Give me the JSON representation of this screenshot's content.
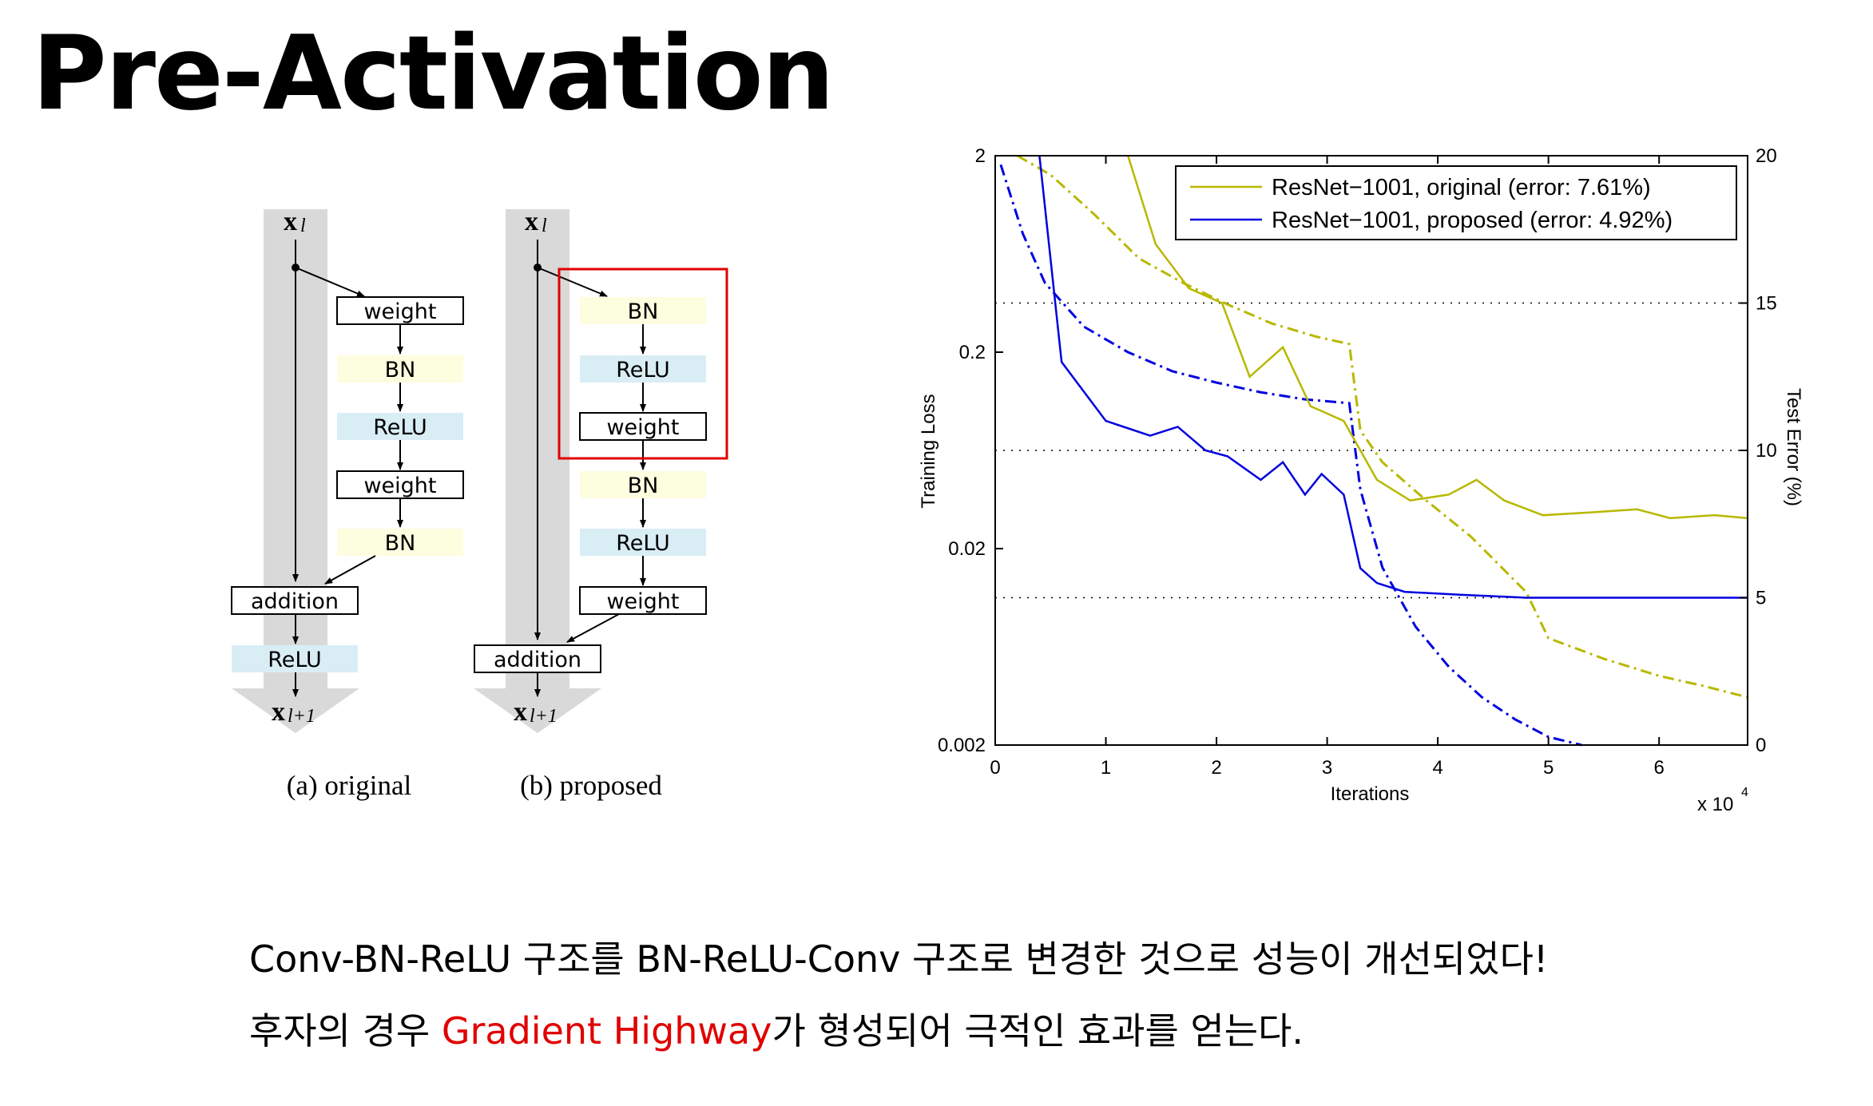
{
  "title": "Pre-Activation",
  "diagram": {
    "input_label": "x",
    "input_sub": "l",
    "output_label": "x",
    "output_sub": "l+1",
    "original": {
      "caption": "(a) original",
      "blocks": [
        "weight",
        "BN",
        "ReLU",
        "weight",
        "BN"
      ],
      "addition": "addition",
      "after": "ReLU"
    },
    "proposed": {
      "caption": "(b) proposed",
      "blocks": [
        "BN",
        "ReLU",
        "weight",
        "BN",
        "ReLU",
        "weight"
      ],
      "addition": "addition"
    },
    "colors": {
      "bn": "#fdfde0",
      "relu": "#d9edf5",
      "weight": "#ffffff",
      "highway": "#d9d9d9",
      "highlight": "#e00000"
    }
  },
  "chart_data": {
    "type": "line",
    "legend": [
      {
        "name": "ResNet−1001, original (error: 7.61%)",
        "color": "#b8b800"
      },
      {
        "name": "ResNet−1001, proposed (error: 4.92%)",
        "color": "#0000e0"
      }
    ],
    "legend_position": "top-right",
    "xlabel": "Iterations",
    "x_multiplier": "x 10",
    "x_multiplier_exp": "4",
    "ylabel_left": "Training Loss",
    "ylabel_right": "Test Error (%)",
    "x_ticks": [
      "0",
      "1",
      "2",
      "3",
      "4",
      "5",
      "6"
    ],
    "y_left_ticks": [
      "2",
      "0.2",
      "0.02",
      "0.002"
    ],
    "y_right_ticks": [
      "20",
      "15",
      "10",
      "5",
      "0"
    ],
    "xlim": [
      0,
      6.8
    ],
    "y_left_log_range": [
      0.002,
      2
    ],
    "y_right_range": [
      0,
      20
    ],
    "test_error_series": [
      {
        "name": "original",
        "color": "#b8b800",
        "x": [
          1.2,
          1.45,
          1.75,
          2.05,
          2.3,
          2.6,
          2.85,
          3.15,
          3.45,
          3.75,
          4.1,
          4.35,
          4.6,
          4.95,
          5.4,
          5.8,
          6.1,
          6.5,
          6.8
        ],
        "y": [
          20,
          17,
          15.5,
          15,
          12.5,
          13.5,
          11.5,
          11,
          9,
          8.3,
          8.5,
          9,
          8.3,
          7.8,
          7.9,
          8,
          7.7,
          7.8,
          7.7
        ]
      },
      {
        "name": "proposed",
        "color": "#0000e0",
        "x": [
          0.4,
          0.6,
          1.0,
          1.4,
          1.65,
          1.9,
          2.1,
          2.4,
          2.6,
          2.8,
          2.95,
          3.15,
          3.3,
          3.45,
          3.7,
          4.2,
          4.8,
          5.5,
          6.0,
          6.8
        ],
        "y": [
          20,
          13,
          11,
          10.5,
          10.8,
          10,
          9.8,
          9,
          9.6,
          8.5,
          9.2,
          8.5,
          6,
          5.5,
          5.2,
          5.1,
          5.0,
          5.0,
          5.0,
          5.0
        ]
      }
    ],
    "training_loss_series": [
      {
        "name": "original",
        "color": "#b8b800",
        "x": [
          0.2,
          0.5,
          0.9,
          1.3,
          1.7,
          2.1,
          2.5,
          2.9,
          3.2,
          3.3,
          3.5,
          3.9,
          4.3,
          4.8,
          5.0,
          5.5,
          6.0,
          6.4,
          6.8
        ],
        "y": [
          2.0,
          1.6,
          1.0,
          0.6,
          0.45,
          0.35,
          0.28,
          0.24,
          0.22,
          0.08,
          0.055,
          0.035,
          0.023,
          0.012,
          0.007,
          0.0055,
          0.0045,
          0.004,
          0.0035
        ]
      },
      {
        "name": "proposed",
        "color": "#0000e0",
        "x": [
          0.05,
          0.25,
          0.45,
          0.8,
          1.2,
          1.6,
          2.0,
          2.4,
          2.8,
          3.2,
          3.3,
          3.5,
          3.8,
          4.1,
          4.4,
          4.7,
          5.0,
          5.3
        ],
        "y": [
          1.8,
          0.8,
          0.45,
          0.27,
          0.2,
          0.16,
          0.14,
          0.125,
          0.115,
          0.11,
          0.04,
          0.016,
          0.008,
          0.005,
          0.0035,
          0.0027,
          0.0022,
          0.002
        ]
      }
    ]
  },
  "text": {
    "line1": "Conv-BN-ReLU 구조를 BN-ReLU-Conv 구조로 변경한 것으로 성능이 개선되었다!",
    "line2_prefix": "후자의 경우 ",
    "line2_highlight": "Gradient Highway",
    "line2_suffix": "가 형성되어 극적인 효과를 얻는다."
  }
}
